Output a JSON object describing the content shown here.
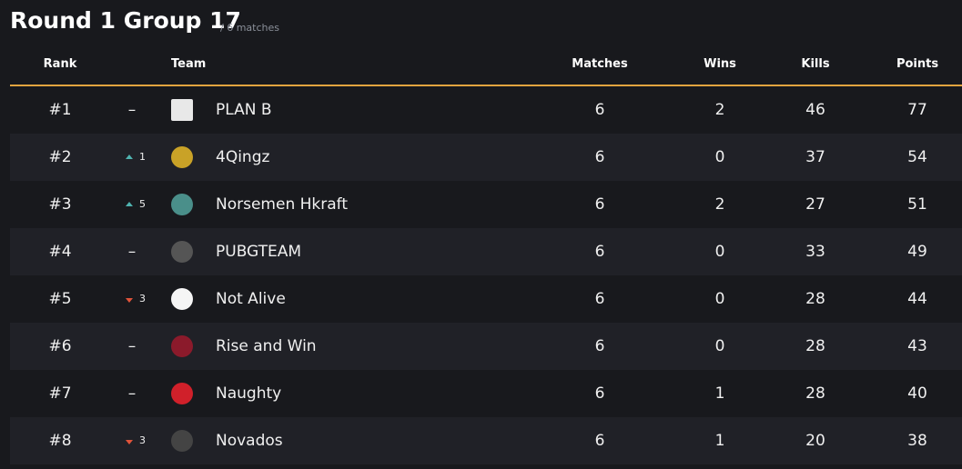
{
  "header": {
    "title": "Round 1 Group 17",
    "subtitle": "/ 6 matches"
  },
  "table": {
    "columns": [
      "Rank",
      "Team",
      "Matches",
      "Wins",
      "Kills",
      "Points"
    ],
    "rows": [
      {
        "rank": "#1",
        "change": "–",
        "team": "PLAN B",
        "matches": 6,
        "wins": 2,
        "kills": 46,
        "points": 77
      },
      {
        "rank": "#2",
        "change": {
          "direction": "up",
          "amount": 1
        },
        "team": "4Qingz",
        "matches": 6,
        "wins": 0,
        "kills": 37,
        "points": 54
      },
      {
        "rank": "#3",
        "change": {
          "direction": "up",
          "amount": 5
        },
        "team": "Norsemen Hkraft",
        "matches": 6,
        "wins": 2,
        "kills": 27,
        "points": 51
      },
      {
        "rank": "#4",
        "change": "–",
        "team": "PUBGTEAM",
        "matches": 6,
        "wins": 0,
        "kills": 33,
        "points": 49
      },
      {
        "rank": "#5",
        "change": {
          "direction": "down",
          "amount": 3
        },
        "team": "Not Alive",
        "matches": 6,
        "wins": 0,
        "kills": 28,
        "points": 44
      },
      {
        "rank": "#6",
        "change": "–",
        "team": "Rise and Win",
        "matches": 6,
        "wins": 0,
        "kills": 28,
        "points": 43
      },
      {
        "rank": "#7",
        "change": "–",
        "team": "Naughty",
        "matches": 6,
        "wins": 1,
        "kills": 28,
        "points": 40
      },
      {
        "rank": "#8",
        "change": {
          "direction": "down",
          "amount": 3
        },
        "team": "Novados",
        "matches": 6,
        "wins": 1,
        "kills": 20,
        "points": 38
      }
    ]
  }
}
